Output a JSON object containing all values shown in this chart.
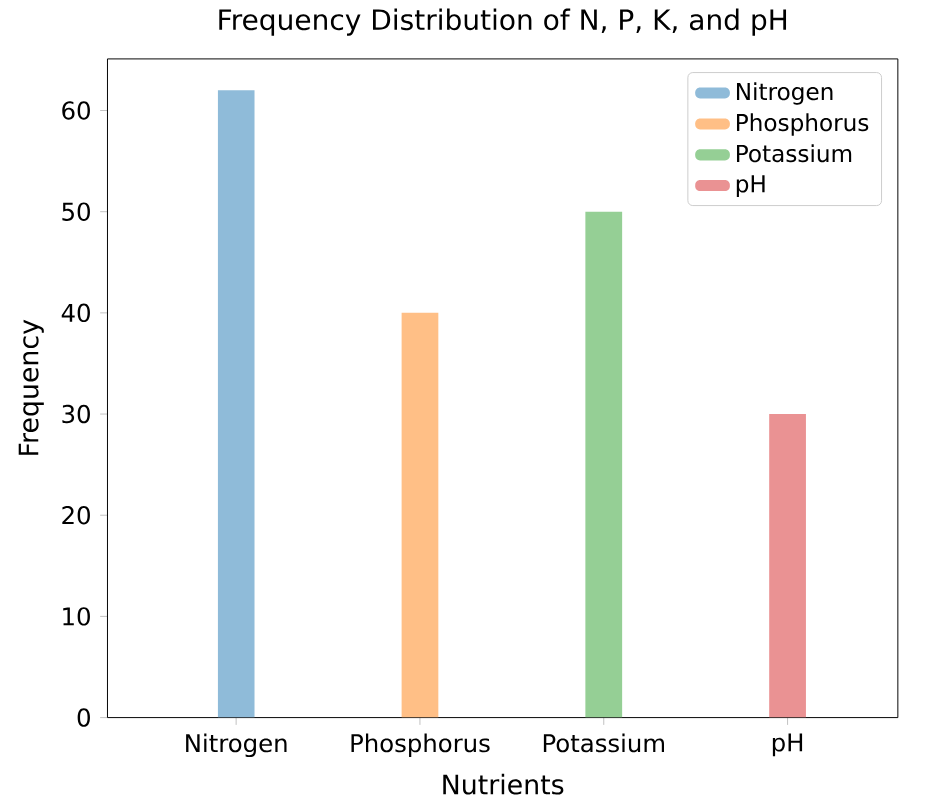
{
  "chart_data": {
    "type": "bar",
    "title": "Frequency Distribution of N, P, K, and pH",
    "xlabel": "Nutrients",
    "ylabel": "Frequency",
    "categories": [
      "Nitrogen",
      "Phosphorus",
      "Potassium",
      "pH"
    ],
    "series": [
      {
        "name": "Nitrogen",
        "color": "#8fbbd9",
        "values": [
          62,
          null,
          null,
          null
        ]
      },
      {
        "name": "Phosphorus",
        "color": "#ffbf86",
        "values": [
          null,
          40,
          null,
          null
        ]
      },
      {
        "name": "Potassium",
        "color": "#95cf95",
        "values": [
          null,
          null,
          50,
          null
        ]
      },
      {
        "name": "pH",
        "color": "#ea9293",
        "values": [
          null,
          null,
          null,
          30
        ]
      }
    ],
    "ylim": [
      0,
      65.1
    ],
    "yticks": [
      0,
      10,
      20,
      30,
      40,
      50,
      60
    ],
    "legend": "top right"
  }
}
